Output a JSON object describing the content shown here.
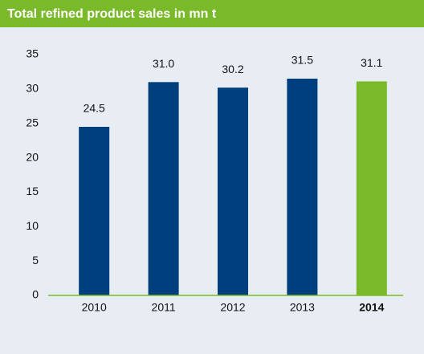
{
  "chart_data": {
    "type": "bar",
    "title": "Total refined product sales in mn t",
    "categories": [
      "2010",
      "2011",
      "2012",
      "2013",
      "2014"
    ],
    "values": [
      24.5,
      31.0,
      30.2,
      31.5,
      31.1
    ],
    "value_labels": [
      "24.5",
      "31.0",
      "30.2",
      "31.5",
      "31.1"
    ],
    "colors": [
      "#003f7d",
      "#003f7d",
      "#003f7d",
      "#003f7d",
      "#7ab929"
    ],
    "highlight_color": "#7ab929",
    "ylim": [
      0,
      35
    ],
    "yticks": [
      0,
      5,
      10,
      15,
      20,
      25,
      30,
      35
    ],
    "grid": false
  }
}
